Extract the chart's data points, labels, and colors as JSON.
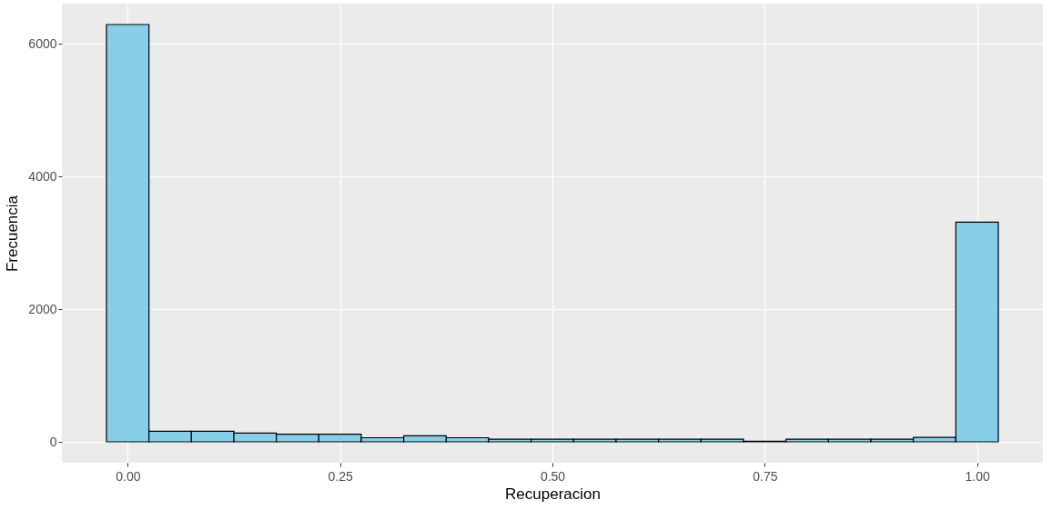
{
  "chart_data": {
    "type": "histogram",
    "xlabel": "Recuperacion",
    "ylabel": "Frecuencia",
    "color": "#87ceeb",
    "bins": [
      -0.025,
      0.025,
      0.075,
      0.125,
      0.175,
      0.225,
      0.275,
      0.325,
      0.375,
      0.425,
      0.475,
      0.525,
      0.575,
      0.625,
      0.675,
      0.725,
      0.775,
      0.825,
      0.875,
      0.925,
      0.975,
      1.025
    ],
    "values": [
      6290,
      160,
      160,
      133,
      114,
      114,
      62,
      90,
      62,
      40,
      40,
      40,
      40,
      40,
      40,
      10,
      40,
      40,
      40,
      68,
      3310
    ],
    "xlim": [
      -0.0775,
      1.0775
    ],
    "ylim": [
      -315,
      6605
    ],
    "xticks": [
      {
        "value": 0,
        "label": "0.00"
      },
      0.25,
      {
        "value": 0.5,
        "label": "0.50"
      },
      0.75,
      {
        "value": 1,
        "label": "1.00"
      }
    ],
    "yticks": [
      0,
      2000,
      4000,
      6000
    ],
    "grid": true
  }
}
